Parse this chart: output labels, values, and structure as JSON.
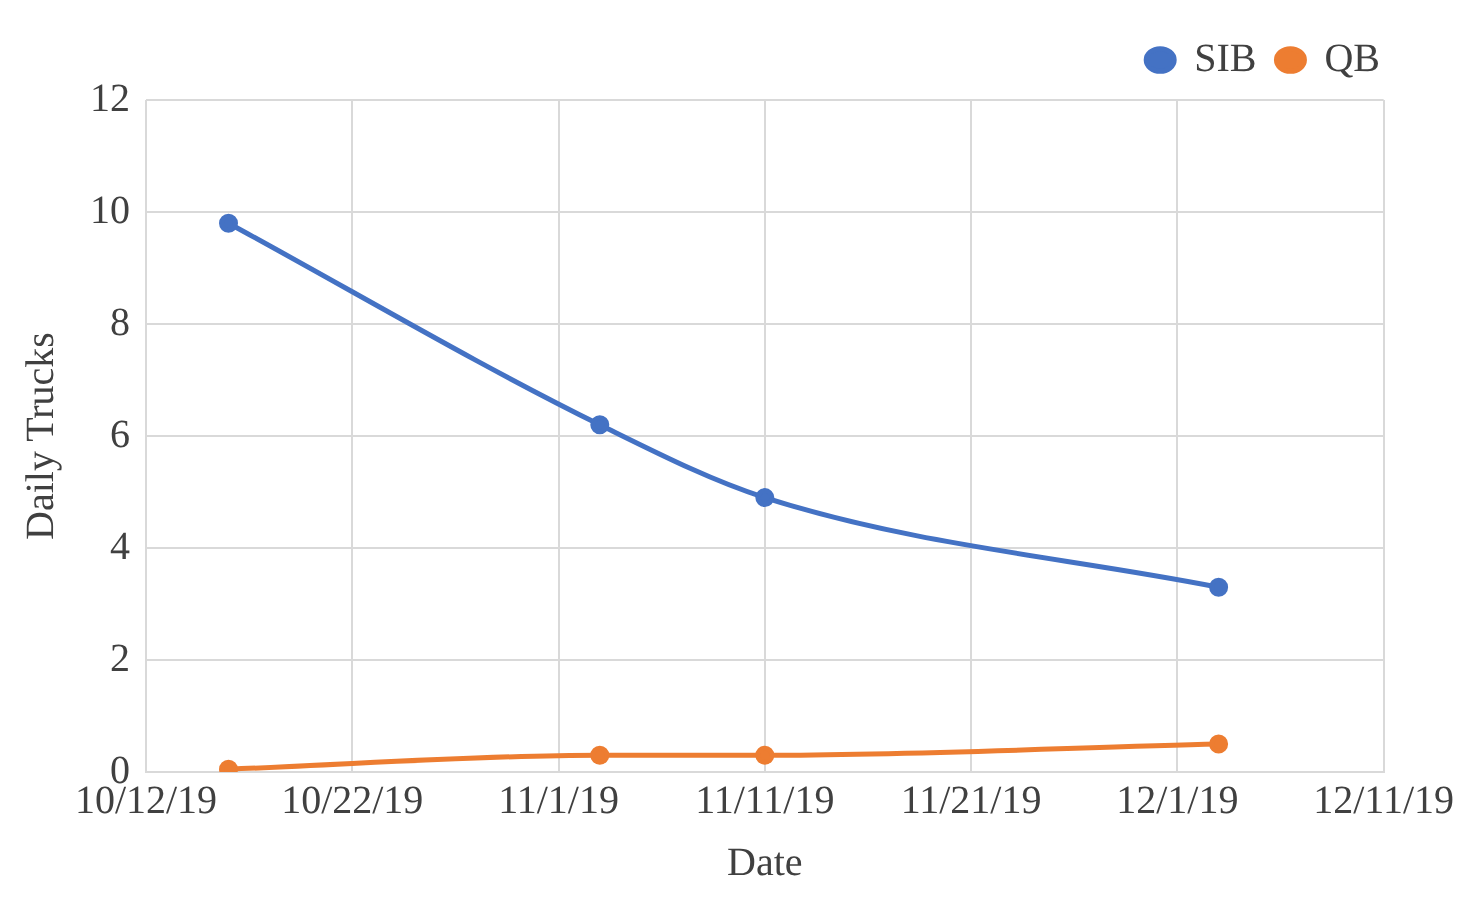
{
  "chart_data": {
    "type": "line",
    "xlabel": "Date",
    "ylabel": "Daily Trucks",
    "x": [
      "--10-16",
      "--11-03",
      "--11-11",
      "--12-03"
    ],
    "series": [
      {
        "name": "SIB",
        "color": "#4472c4",
        "values": [
          9.8,
          6.2,
          4.9,
          3.3
        ]
      },
      {
        "name": "QB",
        "color": "#ed7d31",
        "values": [
          0.05,
          0.3,
          0.3,
          0.5
        ]
      }
    ],
    "xlim": [
      "--10-12",
      "--12-11"
    ],
    "xticks": [
      {
        "value": "--10-12",
        "label": "10/12/19"
      },
      {
        "value": "--10-22",
        "label": "10/22/19"
      },
      {
        "value": "--11-01",
        "label": "11/1/19"
      },
      {
        "value": "--11-11",
        "label": "11/11/19"
      },
      {
        "value": "--11-21",
        "label": "11/21/19"
      },
      {
        "value": "--12-01",
        "label": "12/1/19"
      },
      {
        "value": "--12-11",
        "label": "12/11/19"
      }
    ],
    "ylim": [
      0,
      12
    ],
    "yticks": [
      0,
      2,
      4,
      6,
      8,
      10,
      12
    ],
    "grid": true,
    "legend": "top right",
    "marker": "circle",
    "line_style": "solid"
  }
}
